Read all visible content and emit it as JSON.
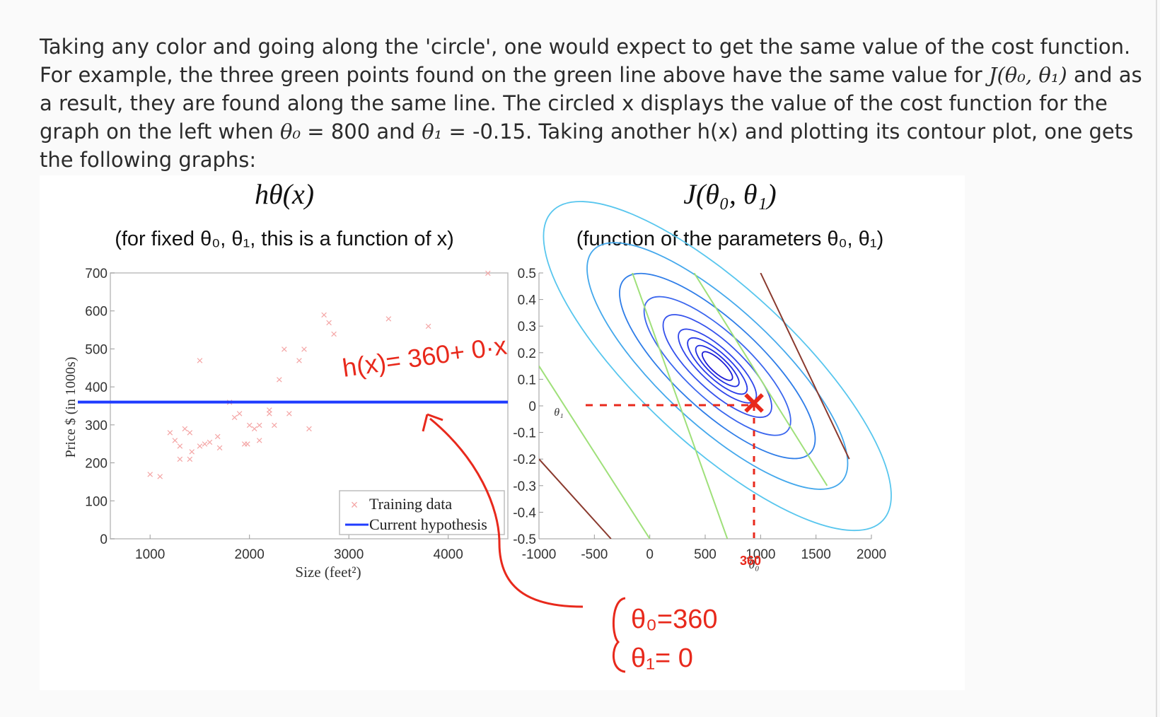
{
  "paragraph": {
    "s1": "Taking any color and going along the 'circle', one would expect to get the same value of the cost function. For example, the three green points found on the green line above have the same value for ",
    "math_J": "J(θ₀, θ₁)",
    "s2": " and as a result, they are found along the same line. The circled x displays the value of the cost function for the graph on the left when ",
    "theta0": "θ₀",
    "s3": " = 800 and ",
    "theta1": "θ₁",
    "s4": " = -0.15. Taking another h(x) and plotting its contour plot, one gets the following graphs:"
  },
  "figure": {
    "left_title": "hθ(x)",
    "left_subtitle": "(for fixed θ₀, θ₁, this is a function of x)",
    "right_title": "J(θ₀, θ₁)",
    "right_subtitle": "(function of the parameters θ₀, θ₁)",
    "left_plot": {
      "ylabel": "Price $ (in 1000s)",
      "xlabel": "Size (feet²)",
      "yticks": [
        "700",
        "600",
        "500",
        "400",
        "300",
        "200",
        "100",
        "0"
      ],
      "xticks": [
        "1000",
        "2000",
        "3000",
        "4000"
      ],
      "legend": [
        "Training data",
        "Current hypothesis"
      ]
    },
    "right_plot": {
      "ylabel": "θ₁",
      "xlabel": "θ₀",
      "yticks": [
        "0.5",
        "0.4",
        "0.3",
        "0.2",
        "0.1",
        "0",
        "-0.1",
        "-0.2",
        "-0.3",
        "-0.4",
        "-0.5"
      ],
      "xticks": [
        "-1000",
        "-500",
        "0",
        "500",
        "1000",
        "1500",
        "2000"
      ]
    },
    "annotations": {
      "hypothesis": "h(x)= 360+ 0·x",
      "theta0_marker": "360",
      "theta0_eq": "θ₀=360",
      "theta1_eq": "θ₁= 0"
    }
  },
  "chart_data": [
    {
      "type": "scatter",
      "title": "hθ(x)",
      "subtitle": "(for fixed θ₀, θ₁, this is a function of x)",
      "xlabel": "Size (feet²)",
      "ylabel": "Price $ (in 1000s)",
      "xlim": [
        600,
        4600
      ],
      "ylim": [
        0,
        700
      ],
      "legend_position": "bottom-right",
      "series": [
        {
          "name": "Training data",
          "color": "#f4a6a6",
          "points": [
            [
              1000,
              170
            ],
            [
              1100,
              165
            ],
            [
              1200,
              280
            ],
            [
              1250,
              260
            ],
            [
              1300,
              245
            ],
            [
              1300,
              210
            ],
            [
              1350,
              290
            ],
            [
              1400,
              280
            ],
            [
              1400,
              210
            ],
            [
              1420,
              230
            ],
            [
              1500,
              245
            ],
            [
              1550,
              250
            ],
            [
              1600,
              255
            ],
            [
              1680,
              270
            ],
            [
              1700,
              240
            ],
            [
              1800,
              360
            ],
            [
              1850,
              320
            ],
            [
              1900,
              330
            ],
            [
              1950,
              250
            ],
            [
              1980,
              250
            ],
            [
              2000,
              300
            ],
            [
              2050,
              290
            ],
            [
              2100,
              260
            ],
            [
              2100,
              300
            ],
            [
              2200,
              340
            ],
            [
              2200,
              330
            ],
            [
              2250,
              300
            ],
            [
              2300,
              420
            ],
            [
              2350,
              500
            ],
            [
              2400,
              330
            ],
            [
              2500,
              470
            ],
            [
              2550,
              500
            ],
            [
              2600,
              290
            ],
            [
              2750,
              590
            ],
            [
              2800,
              570
            ],
            [
              2850,
              540
            ],
            [
              3400,
              580
            ],
            [
              3800,
              560
            ],
            [
              4400,
              700
            ],
            [
              1500,
              470
            ]
          ]
        },
        {
          "name": "Current hypothesis",
          "color": "#1f3bff",
          "x": [
            600,
            4600
          ],
          "y": [
            360,
            360
          ]
        }
      ]
    },
    {
      "type": "line",
      "title": "J(θ₀, θ₁)",
      "subtitle": "(function of the parameters θ₀, θ₁)",
      "xlabel": "θ₀",
      "ylabel": "θ₁",
      "xlim": [
        -1000,
        2000
      ],
      "ylim": [
        -0.5,
        0.5
      ],
      "marked_point": [
        360,
        0
      ]
    }
  ]
}
